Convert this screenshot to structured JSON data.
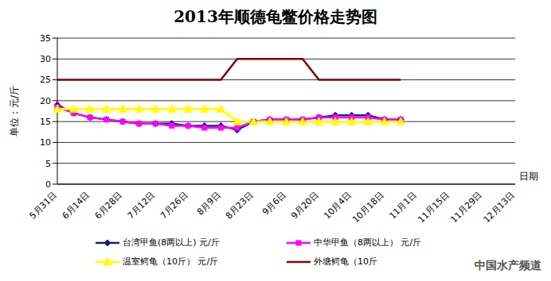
{
  "chart_data": {
    "type": "line",
    "title": "2013年顺德龟鳖价格走势图",
    "y_label": "单位：元/斤",
    "x_label": "日期",
    "annotations": [
      "中国水产频道"
    ],
    "categories": [
      "5月31日",
      null,
      "6月14日",
      null,
      "6月28日",
      null,
      "7月12日",
      null,
      "7月26日",
      null,
      "8月9日",
      null,
      "8月23日",
      null,
      "9月6日",
      null,
      "9月20日",
      null,
      "10月4日",
      null,
      "10月18日",
      null,
      "11月1日",
      null,
      "11月15日",
      null,
      "11月29日",
      null,
      "12月13日"
    ],
    "series": [
      {
        "name": "台湾甲鱼(8两以上) 元/斤",
        "color": "#1c1c78",
        "marker": "diamond",
        "values": [
          19,
          17,
          16,
          15.5,
          15,
          14.5,
          14.5,
          14.5,
          14,
          14,
          14,
          13,
          15,
          15.5,
          15.5,
          15.5,
          16,
          16.5,
          16.5,
          16.5,
          15.5,
          15.5,
          null,
          null,
          null,
          null,
          null,
          null,
          null
        ]
      },
      {
        "name": "中华甲鱼（8两以上） 元/斤",
        "color": "#ff00ff",
        "marker": "square",
        "values": [
          18.5,
          17,
          16,
          15.5,
          15,
          14.5,
          14.5,
          14,
          14,
          13.5,
          13.5,
          13.5,
          15,
          15.5,
          15.5,
          15.5,
          16,
          16,
          16,
          16,
          15.5,
          15.5,
          null,
          null,
          null,
          null,
          null,
          null,
          null
        ]
      },
      {
        "name": "温室鳄龟（10斤） 元/斤",
        "color": "#ffff00",
        "marker": "triangle",
        "values": [
          18,
          18,
          18,
          18,
          18,
          18,
          18,
          18,
          18,
          18,
          18,
          15,
          15,
          15,
          15,
          15,
          15,
          15,
          15,
          15,
          15,
          15,
          null,
          null,
          null,
          null,
          null,
          null,
          null
        ]
      },
      {
        "name": "外塘鳄龟（10斤",
        "color": "#800000",
        "marker": "none",
        "values": [
          25,
          25,
          25,
          25,
          25,
          25,
          25,
          25,
          25,
          25,
          25,
          30,
          30,
          30,
          30,
          30,
          25,
          25,
          25,
          25,
          25,
          25,
          null,
          null,
          null,
          null,
          null,
          null,
          null
        ]
      }
    ],
    "ylim": [
      0,
      35
    ],
    "yticks": [
      0,
      5,
      10,
      15,
      20,
      25,
      30,
      35
    ],
    "grid": true,
    "legend": "bottom"
  }
}
